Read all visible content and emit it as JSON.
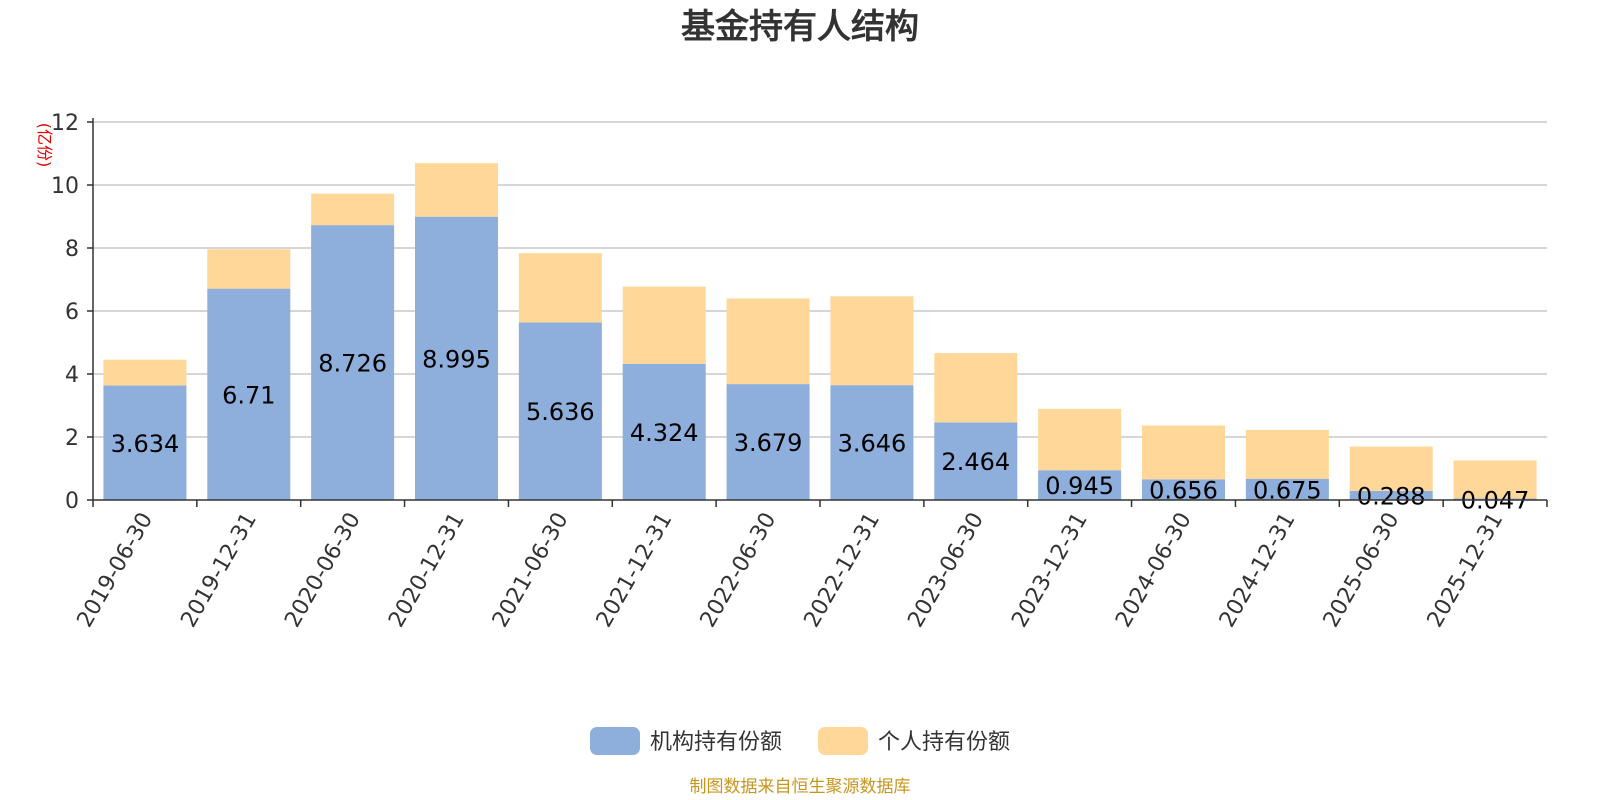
{
  "chart_data": {
    "type": "bar",
    "stacked": true,
    "title": "基金持有人结构",
    "ylabel": "(亿份)",
    "ylim": [
      0,
      12
    ],
    "yticks": [
      0,
      2,
      4,
      6,
      8,
      10,
      12
    ],
    "grid": true,
    "categories": [
      "2019-06-30",
      "2019-12-31",
      "2020-06-30",
      "2020-12-31",
      "2021-06-30",
      "2021-12-31",
      "2022-06-30",
      "2022-12-31",
      "2023-06-30",
      "2023-12-31",
      "2024-06-30",
      "2024-12-31",
      "2025-06-30",
      "2025-12-31"
    ],
    "series": [
      {
        "name": "机构持有份额",
        "color": "#8eaedb",
        "values": [
          3.634,
          6.71,
          8.726,
          8.995,
          5.636,
          4.324,
          3.679,
          3.646,
          2.464,
          0.945,
          0.656,
          0.675,
          0.288,
          0.047
        ],
        "labels": [
          "3.634",
          "6.71",
          "8.726",
          "8.995",
          "5.636",
          "4.324",
          "3.679",
          "3.646",
          "2.464",
          "0.945",
          "0.656",
          "0.675",
          "0.288",
          "0.047"
        ]
      },
      {
        "name": "个人持有份额",
        "color": "#ffd899",
        "values": [
          0.82,
          1.25,
          1.0,
          1.7,
          2.2,
          2.45,
          2.72,
          2.82,
          2.2,
          1.95,
          1.71,
          1.55,
          1.41,
          1.21
        ]
      }
    ],
    "legend_position": "bottom-center",
    "source": "制图数据来自恒生聚源数据库"
  }
}
